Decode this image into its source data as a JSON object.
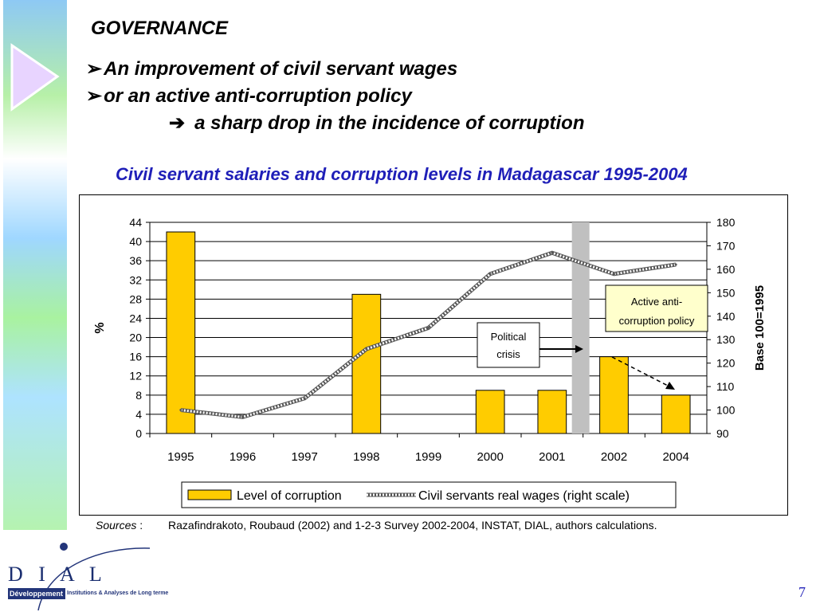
{
  "slide": {
    "heading": "GOVERNANCE",
    "bullets": [
      {
        "mark": "➢",
        "text": "An improvement of civil servant wages"
      },
      {
        "mark": "➢",
        "text": "or an active anti-corruption policy"
      },
      {
        "mark": "➔",
        "text": "a sharp drop in the incidence of corruption"
      }
    ],
    "chart_title": "Civil servant salaries and corruption levels in Madagascar 1995-2004",
    "sources_label": "Sources",
    "sources_sep": " :",
    "sources_text": "Razafindrakoto, Roubaud (2002) and 1-2-3 Survey 2002-2004, INSTAT, DIAL, authors calculations.",
    "page_number": "7",
    "logo": {
      "letters": "D   I   A   L",
      "bar_text": "Développement",
      "sub_text": "Institutions & Analyses de Long terme"
    },
    "colors": {
      "bar_fill": "#ffcc00",
      "bar_stroke": "#000000",
      "wage_line": "#9a9a9a",
      "crisis_band": "#c0c0c0",
      "title_blue": "#1f1fb8"
    }
  },
  "chart_data": {
    "type": "bar",
    "categories": [
      "1995",
      "1996",
      "1997",
      "1998",
      "1999",
      "2000",
      "2001",
      "2002",
      "2004"
    ],
    "series": [
      {
        "name": "Level of corruption",
        "type": "bar",
        "axis": "left",
        "values": [
          42,
          null,
          null,
          29,
          null,
          9,
          9,
          16,
          8
        ]
      },
      {
        "name": "Civil servants real wages (right scale)",
        "type": "line",
        "axis": "right",
        "values": [
          100,
          97,
          105,
          126,
          135,
          158,
          167,
          158,
          162
        ]
      }
    ],
    "ylabel": "%",
    "ylim": [
      0,
      44
    ],
    "yticks": [
      0,
      4,
      8,
      12,
      16,
      20,
      24,
      28,
      32,
      36,
      40,
      44
    ],
    "y2label": "Base 100=1995",
    "y2lim": [
      90,
      180
    ],
    "y2ticks": [
      90,
      100,
      110,
      120,
      130,
      140,
      150,
      160,
      170,
      180
    ],
    "grid": true,
    "legend_position": "bottom",
    "annotations": [
      {
        "text": "Political crisis"
      },
      {
        "text": "Active anti-corruption policy"
      }
    ]
  }
}
